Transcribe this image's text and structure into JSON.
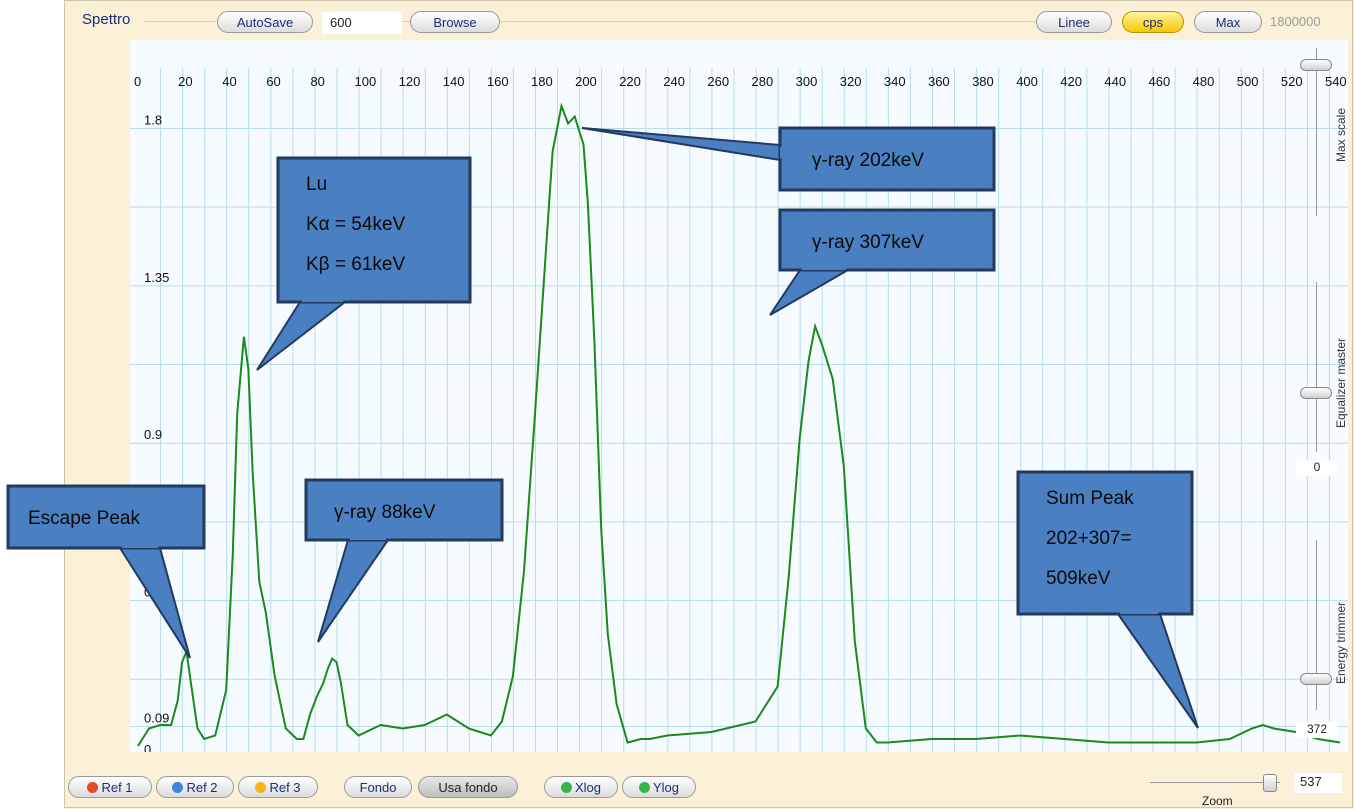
{
  "app": {
    "title": "Spettro",
    "autosave_label": "AutoSave",
    "autosave_value": "600",
    "browse_label": "Browse",
    "linee_label": "Linee",
    "cps_label": "cps",
    "max_label": "Max",
    "max_value": "1800000"
  },
  "right_panel": {
    "max_scale_label": "Max scale",
    "max_scale_level": 0.9,
    "equalizer_label": "Equalizer master",
    "equalizer_level": 0.35,
    "equalizer_value": "0",
    "energy_trimmer_label": "Energy trimmer",
    "energy_trimmer_level": 0.18,
    "energy_trimmer_value": "372"
  },
  "bottom": {
    "ref1": "Ref 1",
    "ref2": "Ref 2",
    "ref3": "Ref 3",
    "fondo": "Fondo",
    "usa_fondo": "Usa fondo",
    "xlog": "Xlog",
    "ylog": "Ylog",
    "zoom_label": "Zoom",
    "zoom_value": "537",
    "zoom_level": 0.92
  },
  "colors": {
    "trace": "#1a8a1a",
    "grid": "#b9dced",
    "callout_fill": "#4a7fc1",
    "callout_border": "#233a5c",
    "ref1": "#e24a2a",
    "ref2": "#3a86d8",
    "ref3": "#f2b51c",
    "log_on": "#39b34a"
  },
  "callouts": [
    {
      "lines": [
        "Escape Peak"
      ]
    },
    {
      "lines": [
        "Lu",
        "Kα = 54keV",
        "Kβ = 61keV"
      ]
    },
    {
      "lines": [
        "γ-ray  88keV"
      ]
    },
    {
      "lines": [
        "γ-ray  202keV"
      ]
    },
    {
      "lines": [
        "γ-ray  307keV"
      ]
    },
    {
      "lines": [
        "Sum Peak",
        "202+307=",
        "509keV"
      ]
    }
  ],
  "chart_data": {
    "type": "line",
    "x_ticks": [
      "0",
      "20",
      "40",
      "60",
      "80",
      "100",
      "120",
      "140",
      "160",
      "180",
      "200",
      "220",
      "240",
      "260",
      "280",
      "300",
      "320",
      "340",
      "360",
      "380",
      "400",
      "420",
      "440",
      "460",
      "480",
      "500",
      "520",
      "540"
    ],
    "y_ticks": [
      "1.8",
      "1.35",
      "0.9",
      "0.45",
      "0.09",
      "0"
    ],
    "xlim": [
      0,
      545
    ],
    "ylim": [
      0,
      1.83
    ],
    "grid": true,
    "series": [
      {
        "x": [
          0,
          5,
          10,
          15,
          18,
          20,
          22,
          24,
          27,
          30,
          35,
          40,
          43,
          45,
          48,
          50,
          52,
          55,
          58,
          62,
          67,
          72,
          75,
          78,
          81,
          84,
          86,
          88,
          90,
          92,
          95,
          100,
          110,
          120,
          130,
          140,
          145,
          150,
          155,
          160,
          165,
          170,
          175,
          180,
          185,
          188,
          192,
          195,
          198,
          200,
          202,
          204,
          207,
          210,
          213,
          217,
          222,
          228,
          232,
          240,
          260,
          280,
          290,
          295,
          300,
          304,
          307,
          310,
          315,
          320,
          325,
          330,
          335,
          340,
          360,
          380,
          400,
          420,
          440,
          460,
          480,
          495,
          505,
          510,
          515,
          525,
          535,
          545
        ],
        "y": [
          0.0,
          0.05,
          0.06,
          0.06,
          0.13,
          0.24,
          0.27,
          0.18,
          0.05,
          0.02,
          0.03,
          0.16,
          0.55,
          0.95,
          1.17,
          1.08,
          0.78,
          0.47,
          0.38,
          0.2,
          0.05,
          0.02,
          0.02,
          0.09,
          0.14,
          0.18,
          0.22,
          0.25,
          0.24,
          0.18,
          0.06,
          0.03,
          0.06,
          0.05,
          0.06,
          0.09,
          0.07,
          0.05,
          0.04,
          0.03,
          0.07,
          0.2,
          0.5,
          0.95,
          1.42,
          1.7,
          1.83,
          1.78,
          1.8,
          1.76,
          1.72,
          1.55,
          1.15,
          0.62,
          0.32,
          0.12,
          0.01,
          0.02,
          0.02,
          0.03,
          0.04,
          0.07,
          0.17,
          0.48,
          0.88,
          1.1,
          1.2,
          1.15,
          1.05,
          0.8,
          0.3,
          0.05,
          0.01,
          0.01,
          0.02,
          0.02,
          0.03,
          0.02,
          0.01,
          0.01,
          0.01,
          0.02,
          0.05,
          0.06,
          0.05,
          0.04,
          0.02,
          0.01
        ]
      }
    ]
  }
}
